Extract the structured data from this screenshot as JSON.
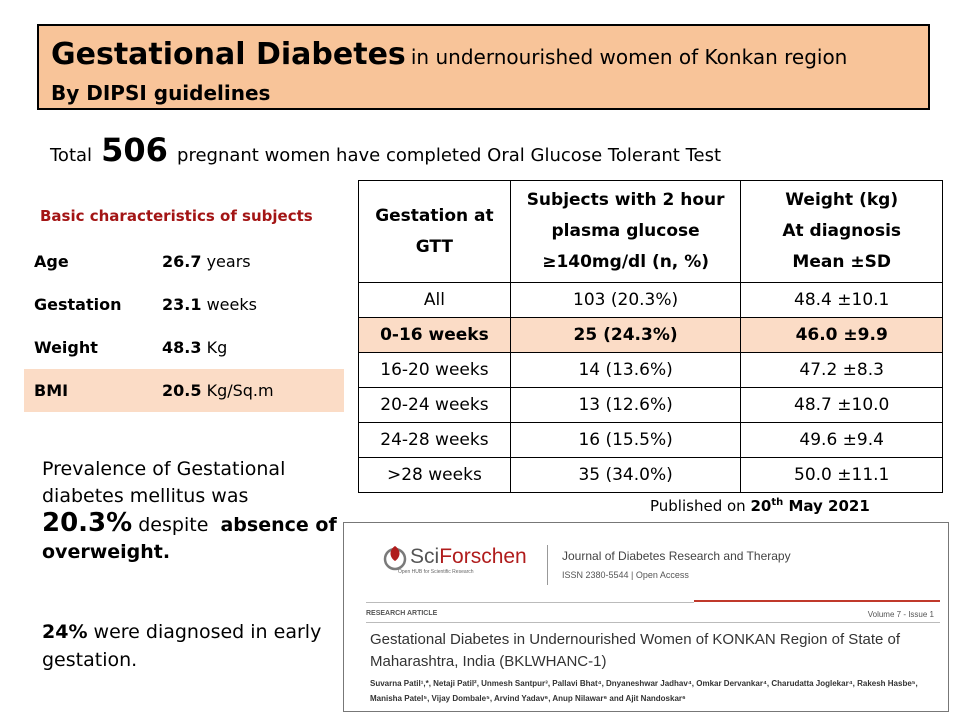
{
  "header": {
    "title_main": "Gestational Diabetes",
    "title_rest": "in undernourished women of Konkan region",
    "subtitle": "By DIPSI guidelines"
  },
  "total": {
    "prefix": "Total",
    "count": "506",
    "suffix": "pregnant women have completed Oral Glucose Tolerant Test"
  },
  "basic": {
    "title": "Basic characteristics  of subjects",
    "rows": [
      {
        "label": "Age",
        "value": "26.7",
        "unit": "years"
      },
      {
        "label": "Gestation",
        "value": "23.1",
        "unit": "weeks"
      },
      {
        "label": "Weight",
        "value": "48.3",
        "unit": "Kg"
      },
      {
        "label": "BMI",
        "value": "20.5",
        "unit": "Kg/Sq.m"
      }
    ]
  },
  "table": {
    "headers": [
      [
        "Gestation at",
        "GTT"
      ],
      [
        "Subjects with 2 hour",
        "plasma glucose",
        "≥140mg/dl (n, %)"
      ],
      [
        "Weight (kg)",
        "At diagnosis",
        "Mean ±SD"
      ]
    ],
    "rows": [
      [
        "All",
        "103 (20.3%)",
        "48.4 ±10.1"
      ],
      [
        "0-16 weeks",
        "25 (24.3%)",
        "46.0 ±9.9"
      ],
      [
        "16-20 weeks",
        "14 (13.6%)",
        "47.2 ±8.3"
      ],
      [
        "20-24 weeks",
        "13 (12.6%)",
        "48.7 ±10.0"
      ],
      [
        "24-28 weeks",
        "16 (15.5%)",
        "49.6 ±9.4"
      ],
      [
        ">28 weeks",
        "35 (34.0%)",
        "50.0 ±11.1"
      ]
    ]
  },
  "prevalence": {
    "line1": "Prevalence of Gestational diabetes mellitus was",
    "value": "20.3%",
    "despite": "despite",
    "bold_tail": "absence of overweight.",
    "early_value": "24%",
    "early_text": "were diagnosed in early gestation."
  },
  "published": {
    "prefix": "Published on",
    "day": "20",
    "sup": "th",
    "month_year": "May 2021"
  },
  "paper": {
    "logo_sci": "Sci",
    "logo_forschen": "Forschen",
    "logo_tagline": "Open HUB for Scientific Research",
    "journal": "Journal of Diabetes Research and Therapy",
    "issn": "ISSN 2380-5544  |  Open Access",
    "article_type": "RESEARCH ARTICLE",
    "volume": "Volume 7 - Issue 1",
    "title": "Gestational Diabetes in Undernourished Women of KONKAN Region of State of Maharashtra, India (BKLWHANC-1)",
    "authors": "Suvarna Patil¹,*, Netaji Patil², Unmesh Santpur³, Pallavi Bhat⁴, Dnyaneshwar Jadhav⁴, Omkar Dervankar⁴, Charudatta Joglekar⁴, Rakesh Hasbe⁵, Manisha Patel⁵, Vijay Dombale⁵, Arvind Yadav⁶, Anup Nilawar⁶ and Ajit Nandoskar⁶"
  },
  "colors": {
    "title_bg": "#f8c499",
    "highlight_bg": "#fbdcc6",
    "section_title": "#a31515",
    "brand_red": "#b01c1c"
  }
}
